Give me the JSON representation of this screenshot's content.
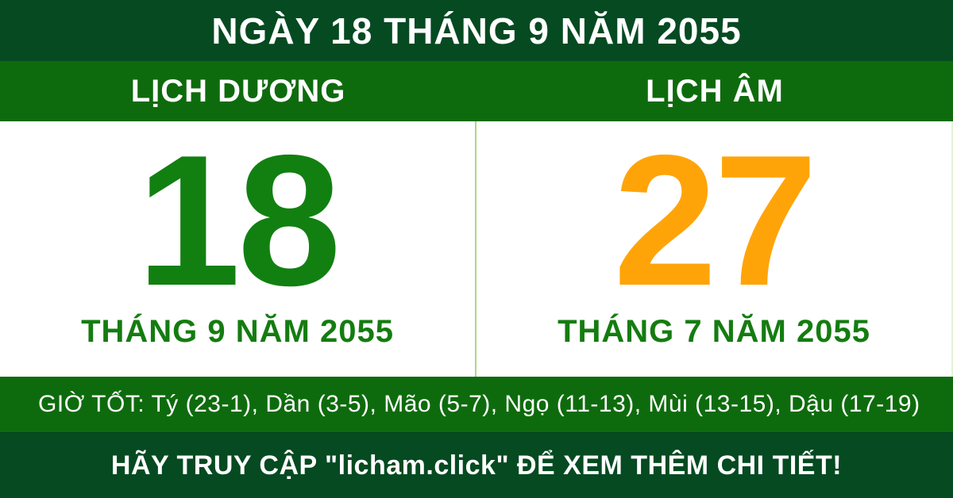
{
  "banner": {
    "title": "NGÀY 18 THÁNG 9 NĂM 2055"
  },
  "solar": {
    "header": "LỊCH DƯƠNG",
    "day": "18",
    "month_year": "THÁNG 9 NĂM 2055"
  },
  "lunar": {
    "header": "LỊCH ÂM",
    "day": "27",
    "month_year": "THÁNG 7 NĂM 2055"
  },
  "good_hours": {
    "text": "GIỜ TỐT: Tý (23-1), Dần (3-5), Mão (5-7), Ngọ (11-13), Mùi (13-15), Dậu (17-19)"
  },
  "footer": {
    "text": "HÃY TRUY CẬP \"licham.click\" ĐỂ XEM THÊM CHI TIẾT!"
  },
  "colors": {
    "dark_green": "#054A21",
    "bright_green": "#0E6B0D",
    "day_green": "#118011",
    "month_green": "#147C10",
    "lunar_orange": "#FFA408",
    "divider_green": "#AADA7D",
    "panel_bg": "#FFFFFF",
    "text_white": "#FFFFFF"
  }
}
